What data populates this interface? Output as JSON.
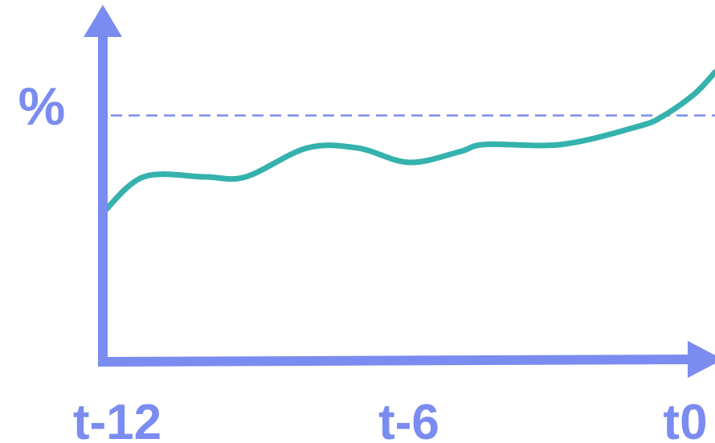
{
  "chart_data": {
    "type": "line",
    "title": "",
    "xlabel": "",
    "ylabel": "%",
    "x_ticks": [
      {
        "x": -12,
        "label": "t-12"
      },
      {
        "x": -6,
        "label": "t-6"
      },
      {
        "x": 0,
        "label": "t0"
      }
    ],
    "xlim": [
      -12,
      0
    ],
    "ylim": [
      0,
      100
    ],
    "grid": false,
    "reference_line": {
      "y": 68,
      "style": "dashed"
    },
    "series": [
      {
        "values": [
          {
            "x": -12,
            "y": 41
          },
          {
            "x": -11.2,
            "y": 51
          },
          {
            "x": -10,
            "y": 51
          },
          {
            "x": -9.2,
            "y": 51
          },
          {
            "x": -8,
            "y": 59
          },
          {
            "x": -7,
            "y": 59
          },
          {
            "x": -6,
            "y": 55
          },
          {
            "x": -5,
            "y": 58
          },
          {
            "x": -4.5,
            "y": 60
          },
          {
            "x": -3,
            "y": 60
          },
          {
            "x": -1.5,
            "y": 65
          },
          {
            "x": -1,
            "y": 68
          },
          {
            "x": -0.4,
            "y": 74
          },
          {
            "x": 0,
            "y": 80
          }
        ]
      }
    ],
    "colors": {
      "axis": "#7b8cf0",
      "series": "#35b2ad",
      "reference_line": "#7b8cf0"
    }
  }
}
